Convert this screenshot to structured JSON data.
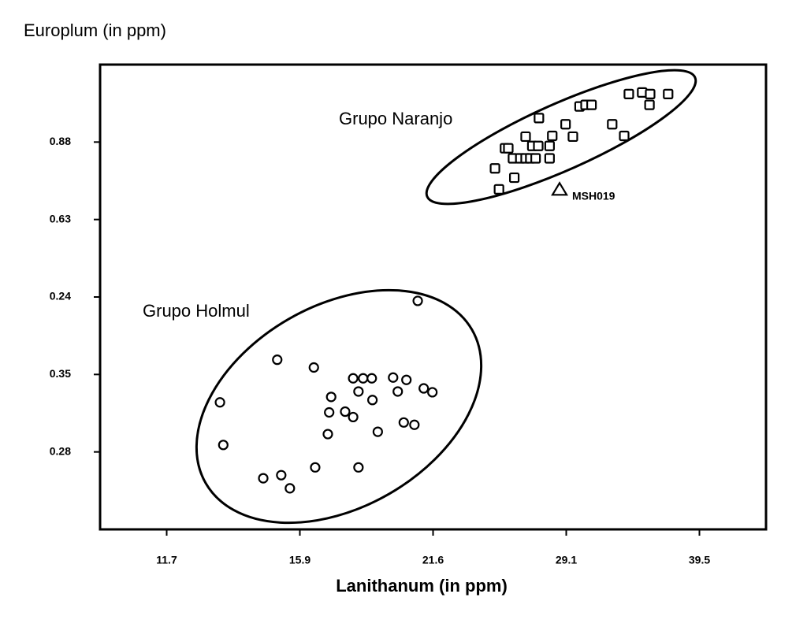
{
  "chart_data": {
    "type": "scatter",
    "ylabel": "Europlum (in ppm)",
    "xlabel": "Lanithanum  (in ppm)",
    "xlim": [
      0,
      10
    ],
    "ylim": [
      0,
      6
    ],
    "xticks": [
      {
        "value": 1,
        "label": "11.7"
      },
      {
        "value": 3,
        "label": "15.9"
      },
      {
        "value": 5,
        "label": "21.6"
      },
      {
        "value": 7,
        "label": "29.1"
      },
      {
        "value": 9,
        "label": "39.5"
      }
    ],
    "yticks": [
      {
        "value": 1,
        "label": "0.28"
      },
      {
        "value": 2,
        "label": "0.35"
      },
      {
        "value": 3,
        "label": "0.24"
      },
      {
        "value": 4,
        "label": "0.63"
      },
      {
        "value": 5,
        "label": "0.88"
      }
    ],
    "series": [
      {
        "name": "Grupo Naranjo",
        "marker": "square",
        "color": "#000000",
        "x": [
          5.93,
          5.99,
          6.08,
          6.13,
          6.22,
          6.2,
          6.31,
          6.39,
          6.46,
          6.39,
          6.49,
          6.58,
          6.75,
          6.54,
          6.75,
          6.59,
          6.79,
          6.99,
          7.1,
          7.2,
          7.29,
          7.38,
          7.69,
          7.87,
          7.94,
          8.14,
          8.26,
          8.25,
          8.53
        ],
        "values": [
          4.66,
          4.39,
          4.92,
          4.92,
          4.54,
          4.79,
          4.79,
          4.79,
          4.79,
          5.07,
          4.95,
          4.95,
          4.95,
          4.79,
          4.79,
          5.31,
          5.08,
          5.23,
          5.07,
          5.46,
          5.48,
          5.48,
          5.23,
          5.08,
          5.62,
          5.64,
          5.62,
          5.48,
          5.62
        ]
      },
      {
        "name": "MSH019",
        "marker": "triangle",
        "color": "#000000",
        "x": [
          6.9
        ],
        "values": [
          4.39
        ]
      },
      {
        "name": "Grupo Holmul",
        "marker": "circle",
        "color": "#000000",
        "x": [
          4.77,
          1.8,
          1.85,
          2.66,
          3.21,
          2.45,
          2.72,
          2.85,
          3.23,
          3.88,
          3.42,
          3.44,
          3.47,
          3.68,
          3.8,
          3.8,
          3.88,
          3.95,
          4.08,
          4.09,
          4.17,
          4.4,
          4.47,
          4.6,
          4.56,
          4.72,
          4.86,
          4.99
        ],
        "values": [
          2.95,
          1.64,
          1.09,
          2.19,
          2.09,
          0.66,
          0.7,
          0.53,
          0.8,
          0.8,
          1.23,
          1.51,
          1.71,
          1.52,
          1.95,
          1.45,
          1.78,
          1.95,
          1.95,
          1.67,
          1.26,
          1.96,
          1.78,
          1.93,
          1.38,
          1.35,
          1.82,
          1.77
        ]
      }
    ]
  }
}
